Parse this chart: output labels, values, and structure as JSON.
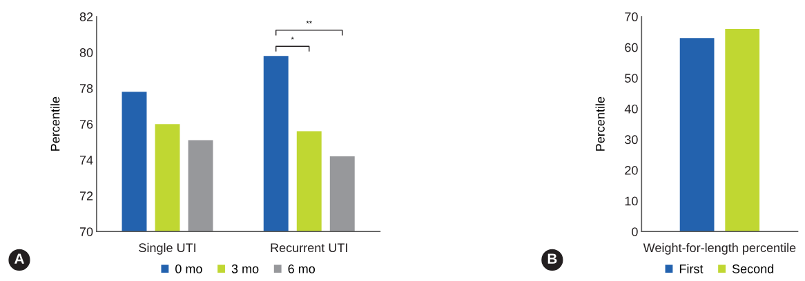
{
  "chart_data": [
    {
      "type": "bar",
      "categories": [
        "Single UTI",
        "Recurrent UTI"
      ],
      "ylabel": "Percentile",
      "ylim": [
        70,
        82
      ],
      "yticks": [
        70,
        72,
        74,
        76,
        78,
        80,
        82
      ],
      "grid": false,
      "legend": "bottom",
      "series": [
        {
          "name": "0 mo",
          "color": "#2362ae",
          "values": [
            77.8,
            79.8
          ]
        },
        {
          "name": "3 mo",
          "color": "#c0d732",
          "values": [
            76.0,
            75.6
          ]
        },
        {
          "name": "6 mo",
          "color": "#97989b",
          "values": [
            75.1,
            74.2
          ]
        }
      ],
      "annotations": [
        "*",
        "**",
        "A"
      ]
    },
    {
      "type": "bar",
      "categories": [
        "Weight-for-length percentile"
      ],
      "ylabel": "Percentile",
      "ylim": [
        0,
        70
      ],
      "yticks": [
        0,
        10,
        20,
        30,
        40,
        50,
        60,
        70
      ],
      "grid": false,
      "legend": "bottom",
      "series": [
        {
          "name": "First",
          "color": "#2362ae",
          "values": [
            63
          ]
        },
        {
          "name": "Second",
          "color": "#c0d732",
          "values": [
            66
          ]
        }
      ],
      "annotations": [
        "B"
      ]
    }
  ]
}
